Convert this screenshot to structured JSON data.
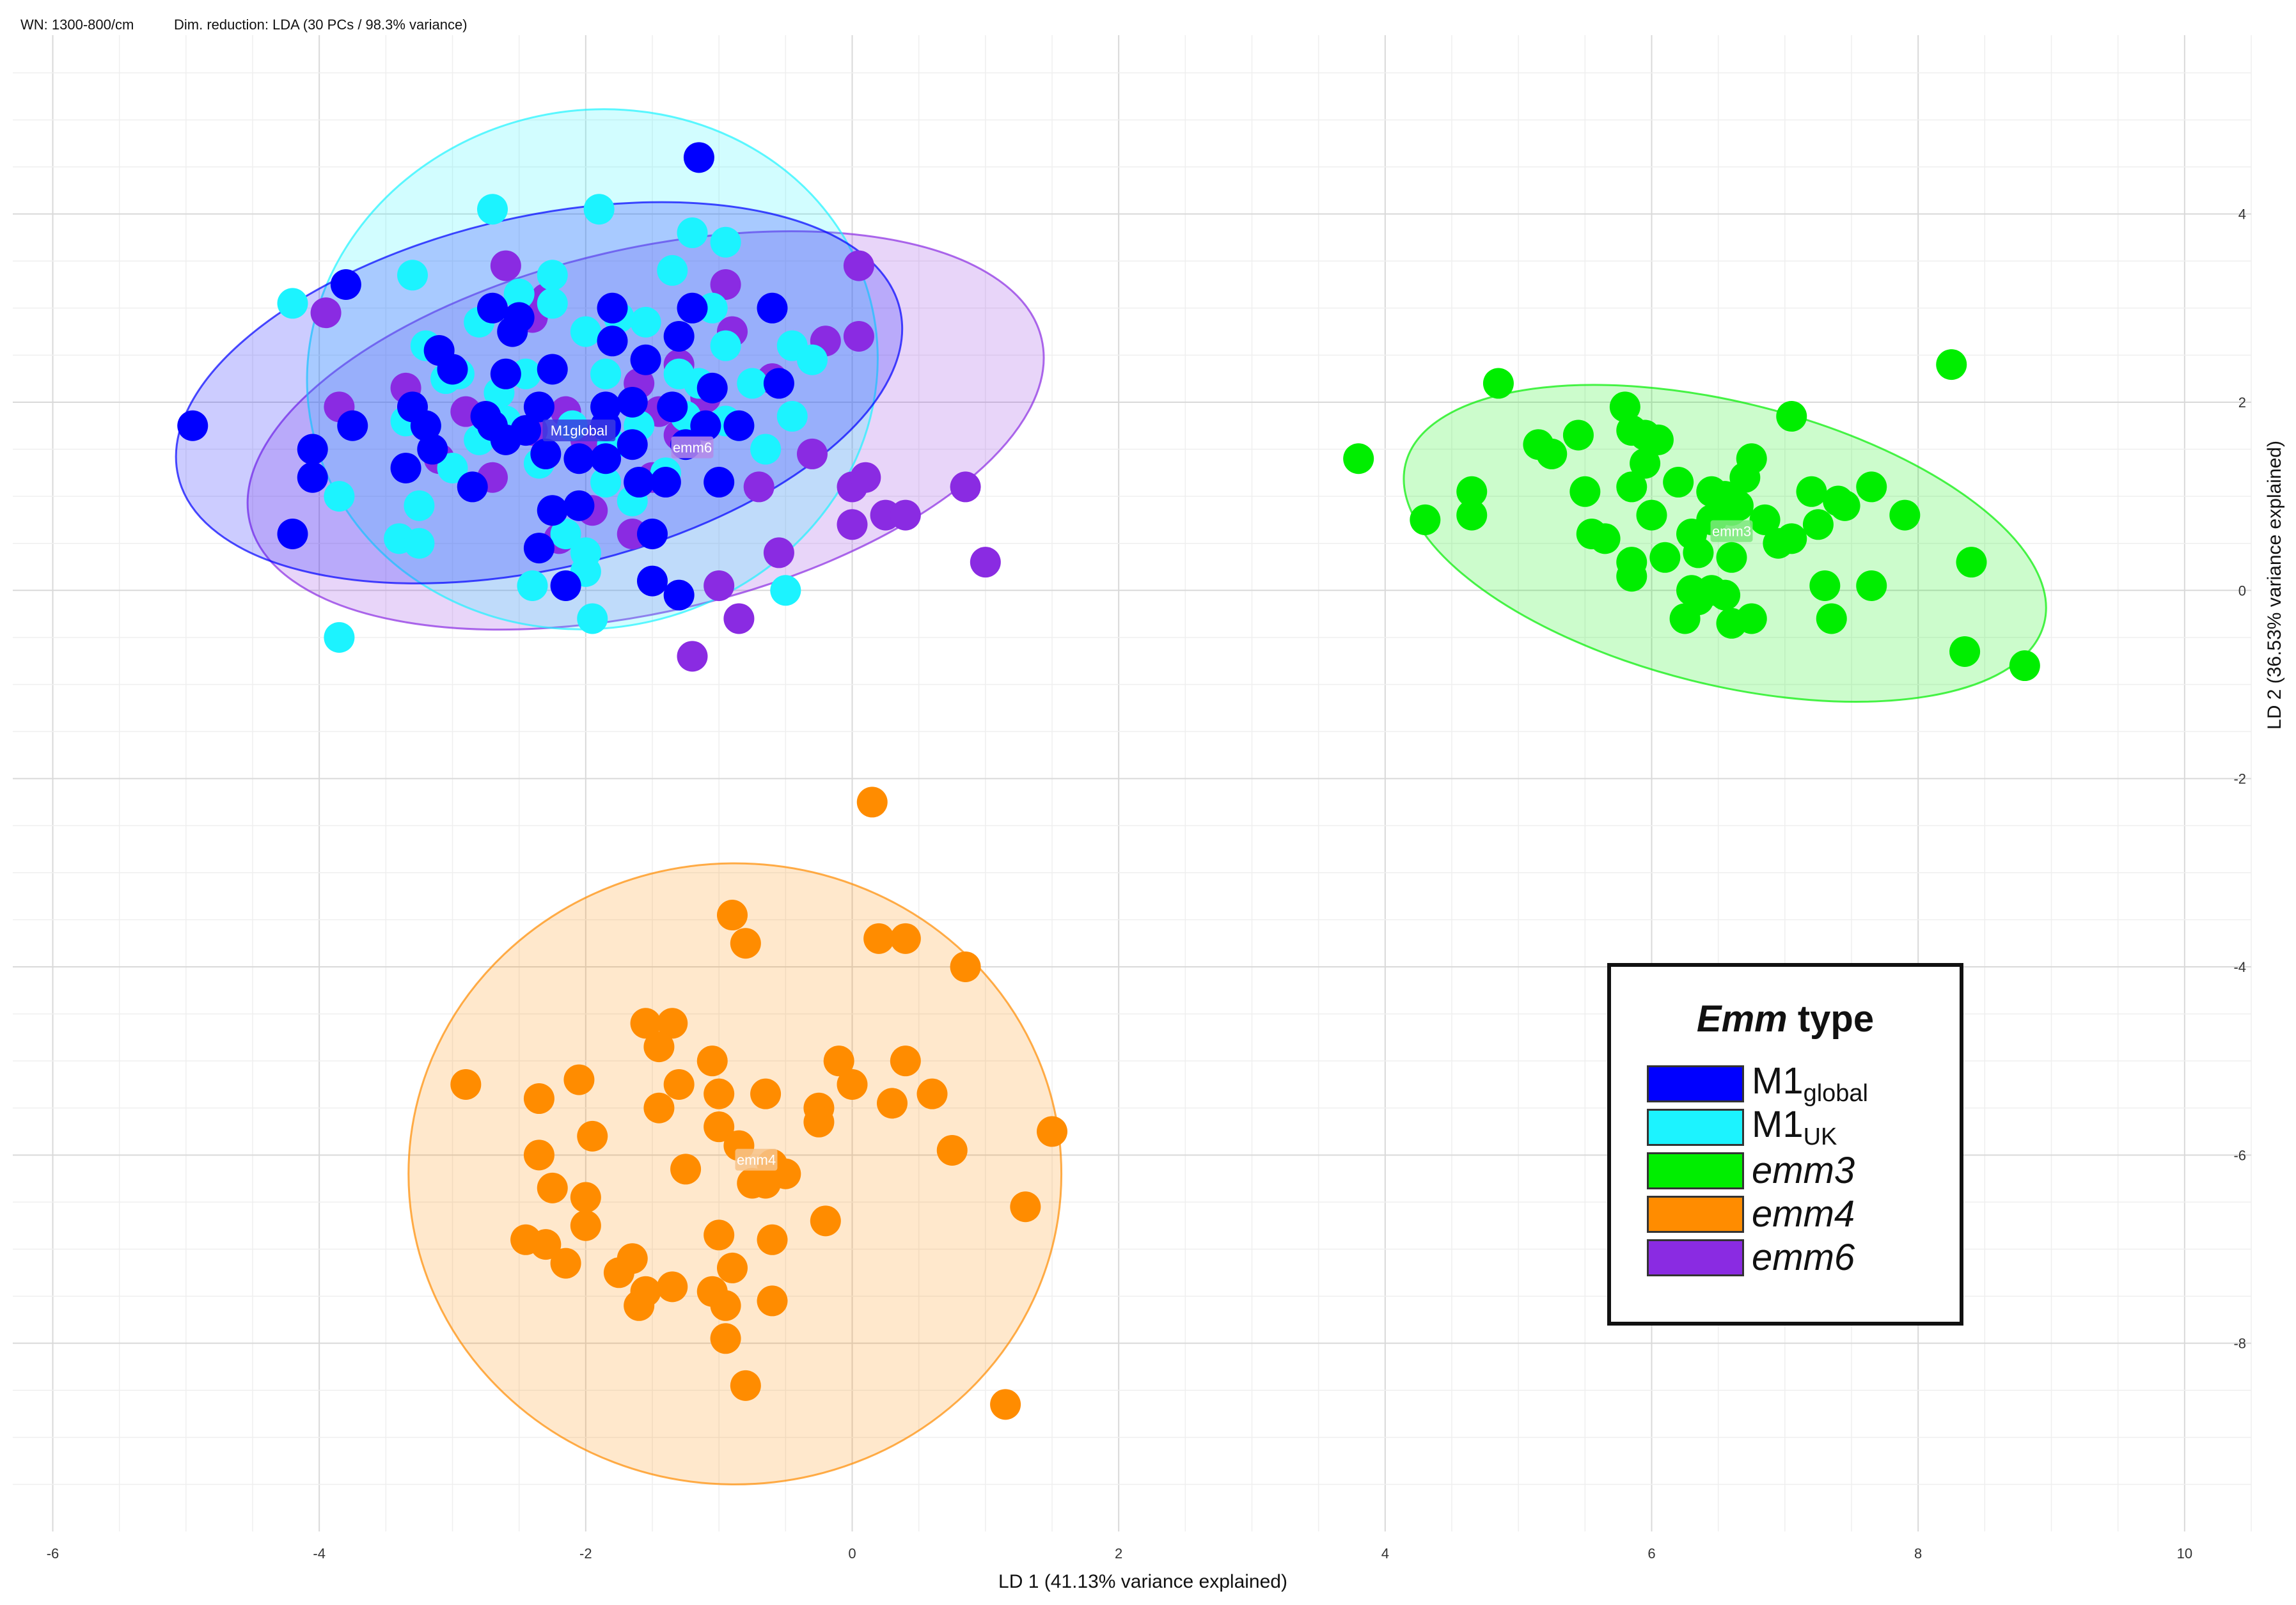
{
  "header": {
    "wn_text": "WN: 1300-800/cm",
    "dimred_text": "Dim. reduction: LDA (30 PCs / 98.3% variance)"
  },
  "legend": {
    "title_emph": "Emm",
    "title_rest": " type",
    "entries": [
      {
        "base": "M1",
        "sub": "global",
        "italic": false,
        "color": "#0000FF"
      },
      {
        "base": "M1",
        "sub": "UK",
        "italic": false,
        "color": "#1CF3FF"
      },
      {
        "base": "emm3",
        "sub": "",
        "italic": true,
        "color": "#00EE00"
      },
      {
        "base": "emm4",
        "sub": "",
        "italic": true,
        "color": "#FF8C00"
      },
      {
        "base": "emm6",
        "sub": "",
        "italic": true,
        "color": "#8A2BE2"
      }
    ]
  },
  "chart_data": {
    "type": "scatter",
    "xlabel": "LD 1 (41.13% variance explained)",
    "ylabel": "LD 2 (36.53% variance explained)",
    "xlim": [
      -6.3,
      10.5
    ],
    "ylim": [
      -10.0,
      5.9
    ],
    "xticks": [
      -6,
      -4,
      -2,
      0,
      2,
      4,
      6,
      8,
      10
    ],
    "xtick_labels": [
      "-6",
      "-4",
      "-2",
      "0",
      "2",
      "4",
      "6",
      "8",
      "10"
    ],
    "yticks": [
      4,
      2,
      0,
      -2,
      -4,
      -6,
      -8
    ],
    "ytick_labels": [
      "4",
      "2",
      "0",
      "-2",
      "-4",
      "-6",
      "-8"
    ],
    "grid": true,
    "ellipses": [
      {
        "group": "emm6",
        "cx": -1.55,
        "cy": 1.7,
        "rx": 3.05,
        "ry": 1.93,
        "angle": -13,
        "color": "#8A2BE2"
      },
      {
        "group": "M1UK",
        "cx": -1.95,
        "cy": 2.35,
        "rx": 2.15,
        "ry": 2.75,
        "angle": -12,
        "color": "#1CF3FF"
      },
      {
        "group": "M1global",
        "cx": -2.35,
        "cy": 2.1,
        "rx": 2.78,
        "ry": 1.87,
        "angle": -13,
        "color": "#0000FF"
      },
      {
        "group": "emm3",
        "cx": 6.55,
        "cy": 0.5,
        "rx": 2.47,
        "ry": 1.5,
        "angle": 14,
        "color": "#00EE00"
      },
      {
        "group": "emm4",
        "cx": -0.88,
        "cy": -6.2,
        "rx": 2.45,
        "ry": 3.3,
        "angle": 0,
        "color": "#FF8C00"
      }
    ],
    "cluster_labels": [
      {
        "text": "M1global",
        "x": -2.05,
        "y": 1.7,
        "bg": "#3A3AE0"
      },
      {
        "text": "emm6",
        "x": -1.2,
        "y": 1.52,
        "bg": "#B58AE8"
      },
      {
        "text": "emm3",
        "x": 6.6,
        "y": 0.63,
        "bg": "#7CE87C"
      },
      {
        "text": "emm4",
        "x": -0.72,
        "y": -6.05,
        "bg": "#F7C38A"
      }
    ],
    "series": [
      {
        "name": "emm6",
        "color": "#8A2BE2",
        "points": [
          [
            -3.95,
            2.95
          ],
          [
            -3.85,
            1.95
          ],
          [
            -2.6,
            3.45
          ],
          [
            -2.3,
            3.1
          ],
          [
            -1.6,
            2.2
          ],
          [
            -1.3,
            2.4
          ],
          [
            -0.95,
            3.25
          ],
          [
            -0.2,
            2.65
          ],
          [
            0.05,
            2.7
          ],
          [
            0.05,
            3.45
          ],
          [
            -3.1,
            1.4
          ],
          [
            -2.9,
            1.9
          ],
          [
            -2.4,
            1.7
          ],
          [
            -2.0,
            1.6
          ],
          [
            -1.5,
            1.2
          ],
          [
            -1.3,
            1.65
          ],
          [
            -1.1,
            2.05
          ],
          [
            -0.7,
            1.1
          ],
          [
            -0.3,
            1.45
          ],
          [
            -0.6,
            2.25
          ],
          [
            -2.2,
            0.55
          ],
          [
            -1.95,
            0.85
          ],
          [
            -2.7,
            1.2
          ],
          [
            -0.55,
            0.4
          ],
          [
            -1.0,
            0.05
          ],
          [
            -0.85,
            -0.3
          ],
          [
            -1.2,
            -0.7
          ],
          [
            0.0,
            1.1
          ],
          [
            0.1,
            1.2
          ],
          [
            0.0,
            0.7
          ],
          [
            0.25,
            0.8
          ],
          [
            0.4,
            0.8
          ],
          [
            0.85,
            1.1
          ],
          [
            1.0,
            0.3
          ],
          [
            -1.45,
            1.9
          ],
          [
            -2.15,
            1.9
          ],
          [
            -0.9,
            2.75
          ],
          [
            -3.35,
            2.15
          ],
          [
            -2.4,
            2.9
          ],
          [
            -1.65,
            0.6
          ]
        ]
      },
      {
        "name": "M1UK",
        "color": "#1CF3FF",
        "points": [
          [
            -2.7,
            4.05
          ],
          [
            -1.9,
            4.05
          ],
          [
            -1.2,
            3.8
          ],
          [
            -0.95,
            3.7
          ],
          [
            -4.2,
            3.05
          ],
          [
            -3.3,
            3.35
          ],
          [
            -2.25,
            3.35
          ],
          [
            -1.35,
            3.4
          ],
          [
            -2.5,
            3.15
          ],
          [
            -1.75,
            2.9
          ],
          [
            -1.05,
            3.0
          ],
          [
            -3.2,
            2.6
          ],
          [
            -2.8,
            2.85
          ],
          [
            -2.0,
            2.75
          ],
          [
            -1.55,
            2.85
          ],
          [
            -0.95,
            2.6
          ],
          [
            -0.45,
            2.6
          ],
          [
            -0.3,
            2.45
          ],
          [
            -3.05,
            2.25
          ],
          [
            -2.45,
            2.3
          ],
          [
            -1.85,
            2.3
          ],
          [
            -1.3,
            2.3
          ],
          [
            -0.75,
            2.2
          ],
          [
            -3.35,
            1.8
          ],
          [
            -2.6,
            1.8
          ],
          [
            -2.1,
            1.75
          ],
          [
            -1.6,
            1.75
          ],
          [
            -0.95,
            1.8
          ],
          [
            -0.85,
            1.75
          ],
          [
            -0.45,
            1.85
          ],
          [
            -3.0,
            1.3
          ],
          [
            -2.35,
            1.35
          ],
          [
            -1.85,
            1.15
          ],
          [
            -1.4,
            1.25
          ],
          [
            -3.25,
            0.9
          ],
          [
            -2.15,
            0.6
          ],
          [
            -2.0,
            0.4
          ],
          [
            -1.65,
            0.95
          ],
          [
            -3.4,
            0.55
          ],
          [
            -3.25,
            0.5
          ],
          [
            -3.85,
            1.0
          ],
          [
            -2.4,
            0.05
          ],
          [
            -2.0,
            0.2
          ],
          [
            -1.95,
            -0.3
          ],
          [
            -3.85,
            -0.5
          ],
          [
            -0.5,
            0.0
          ],
          [
            -2.25,
            3.05
          ],
          [
            -2.95,
            2.3
          ],
          [
            -1.15,
            2.2
          ],
          [
            -2.8,
            1.6
          ],
          [
            -1.8,
            1.55
          ],
          [
            -3.2,
            1.75
          ],
          [
            -0.65,
            1.5
          ],
          [
            -2.65,
            2.1
          ],
          [
            -1.25,
            1.85
          ]
        ]
      },
      {
        "name": "M1global",
        "color": "#0000FF",
        "points": [
          [
            -1.15,
            4.6
          ],
          [
            -3.8,
            3.25
          ],
          [
            -2.7,
            3.0
          ],
          [
            -1.8,
            3.0
          ],
          [
            -0.6,
            3.0
          ],
          [
            -1.2,
            3.0
          ],
          [
            -2.55,
            2.75
          ],
          [
            -1.8,
            2.65
          ],
          [
            -1.3,
            2.7
          ],
          [
            -3.1,
            2.55
          ],
          [
            -2.6,
            2.3
          ],
          [
            -1.55,
            2.45
          ],
          [
            -3.0,
            2.35
          ],
          [
            -2.25,
            2.35
          ],
          [
            -1.05,
            2.15
          ],
          [
            -0.55,
            2.2
          ],
          [
            -3.3,
            1.95
          ],
          [
            -2.75,
            1.85
          ],
          [
            -2.35,
            1.95
          ],
          [
            -1.65,
            2.0
          ],
          [
            -1.35,
            1.95
          ],
          [
            -4.95,
            1.75
          ],
          [
            -3.75,
            1.75
          ],
          [
            -3.2,
            1.75
          ],
          [
            -2.7,
            1.75
          ],
          [
            -2.45,
            1.7
          ],
          [
            -1.85,
            1.75
          ],
          [
            -1.1,
            1.75
          ],
          [
            -4.05,
            1.5
          ],
          [
            -3.15,
            1.5
          ],
          [
            -2.3,
            1.45
          ],
          [
            -2.05,
            1.4
          ],
          [
            -1.65,
            1.55
          ],
          [
            -0.85,
            1.75
          ],
          [
            -4.05,
            1.2
          ],
          [
            -3.35,
            1.3
          ],
          [
            -2.85,
            1.1
          ],
          [
            -1.6,
            1.15
          ],
          [
            -1.4,
            1.15
          ],
          [
            -1.0,
            1.15
          ],
          [
            -2.25,
            0.85
          ],
          [
            -2.05,
            0.9
          ],
          [
            -1.5,
            0.6
          ],
          [
            -4.2,
            0.6
          ],
          [
            -2.35,
            0.45
          ],
          [
            -1.5,
            0.1
          ],
          [
            -1.3,
            -0.05
          ],
          [
            -2.15,
            0.05
          ],
          [
            -1.85,
            1.95
          ],
          [
            -2.5,
            2.9
          ],
          [
            -2.6,
            1.6
          ],
          [
            -1.85,
            1.4
          ],
          [
            -1.25,
            1.55
          ]
        ]
      },
      {
        "name": "emm3",
        "color": "#00EE00",
        "points": [
          [
            8.25,
            2.4
          ],
          [
            4.85,
            2.2
          ],
          [
            5.8,
            1.95
          ],
          [
            7.05,
            1.85
          ],
          [
            5.85,
            1.7
          ],
          [
            5.95,
            1.65
          ],
          [
            6.05,
            1.6
          ],
          [
            5.45,
            1.65
          ],
          [
            5.15,
            1.55
          ],
          [
            5.25,
            1.45
          ],
          [
            6.75,
            1.4
          ],
          [
            3.8,
            1.4
          ],
          [
            5.95,
            1.35
          ],
          [
            6.2,
            1.15
          ],
          [
            6.7,
            1.2
          ],
          [
            7.2,
            1.05
          ],
          [
            7.4,
            0.95
          ],
          [
            7.65,
            1.1
          ],
          [
            5.85,
            1.1
          ],
          [
            4.65,
            1.05
          ],
          [
            5.5,
            1.05
          ],
          [
            6.45,
            1.05
          ],
          [
            6.55,
            1.0
          ],
          [
            6.65,
            0.9
          ],
          [
            7.45,
            0.9
          ],
          [
            4.3,
            0.75
          ],
          [
            4.65,
            0.8
          ],
          [
            6.0,
            0.8
          ],
          [
            6.45,
            0.75
          ],
          [
            6.6,
            0.85
          ],
          [
            7.25,
            0.7
          ],
          [
            7.9,
            0.8
          ],
          [
            5.55,
            0.6
          ],
          [
            5.65,
            0.55
          ],
          [
            6.3,
            0.6
          ],
          [
            6.95,
            0.5
          ],
          [
            7.05,
            0.55
          ],
          [
            6.85,
            0.75
          ],
          [
            6.35,
            0.4
          ],
          [
            6.6,
            0.35
          ],
          [
            6.1,
            0.35
          ],
          [
            5.85,
            0.3
          ],
          [
            5.85,
            0.15
          ],
          [
            8.4,
            0.3
          ],
          [
            6.3,
            0.0
          ],
          [
            6.45,
            0.0
          ],
          [
            6.35,
            -0.1
          ],
          [
            6.55,
            -0.05
          ],
          [
            7.3,
            0.05
          ],
          [
            7.65,
            0.05
          ],
          [
            6.25,
            -0.3
          ],
          [
            6.6,
            -0.35
          ],
          [
            6.75,
            -0.3
          ],
          [
            7.35,
            -0.3
          ],
          [
            8.35,
            -0.65
          ],
          [
            8.8,
            -0.8
          ]
        ]
      },
      {
        "name": "emm4",
        "color": "#FF8C00",
        "points": [
          [
            0.15,
            -2.25
          ],
          [
            -0.9,
            -3.45
          ],
          [
            -0.8,
            -3.75
          ],
          [
            0.2,
            -3.7
          ],
          [
            0.4,
            -3.7
          ],
          [
            0.85,
            -4.0
          ],
          [
            -1.55,
            -4.6
          ],
          [
            -1.35,
            -4.6
          ],
          [
            -1.45,
            -4.85
          ],
          [
            -1.05,
            -5.0
          ],
          [
            -0.1,
            -5.0
          ],
          [
            0.4,
            -5.0
          ],
          [
            -2.9,
            -5.25
          ],
          [
            -2.05,
            -5.2
          ],
          [
            -1.3,
            -5.25
          ],
          [
            -2.35,
            -5.4
          ],
          [
            -1.0,
            -5.35
          ],
          [
            -0.65,
            -5.35
          ],
          [
            0.0,
            -5.25
          ],
          [
            0.6,
            -5.35
          ],
          [
            -1.45,
            -5.5
          ],
          [
            -0.25,
            -5.5
          ],
          [
            0.3,
            -5.45
          ],
          [
            -1.0,
            -5.7
          ],
          [
            -0.25,
            -5.65
          ],
          [
            -1.95,
            -5.8
          ],
          [
            -0.85,
            -5.9
          ],
          [
            1.5,
            -5.75
          ],
          [
            -2.35,
            -6.0
          ],
          [
            0.75,
            -5.95
          ],
          [
            -1.25,
            -6.15
          ],
          [
            -0.6,
            -6.1
          ],
          [
            -0.5,
            -6.2
          ],
          [
            -0.65,
            -6.3
          ],
          [
            -0.75,
            -6.3
          ],
          [
            -2.25,
            -6.35
          ],
          [
            -2.0,
            -6.45
          ],
          [
            1.3,
            -6.55
          ],
          [
            -2.0,
            -6.75
          ],
          [
            -0.2,
            -6.7
          ],
          [
            -1.0,
            -6.85
          ],
          [
            -0.6,
            -6.9
          ],
          [
            -2.45,
            -6.9
          ],
          [
            -2.3,
            -6.95
          ],
          [
            -1.65,
            -7.1
          ],
          [
            -2.15,
            -7.15
          ],
          [
            -1.75,
            -7.25
          ],
          [
            -0.9,
            -7.2
          ],
          [
            -1.35,
            -7.4
          ],
          [
            -1.55,
            -7.45
          ],
          [
            -1.05,
            -7.45
          ],
          [
            -0.95,
            -7.6
          ],
          [
            -0.6,
            -7.55
          ],
          [
            -1.6,
            -7.6
          ],
          [
            -0.95,
            -7.95
          ],
          [
            -0.8,
            -8.45
          ],
          [
            1.15,
            -8.65
          ]
        ]
      }
    ]
  }
}
